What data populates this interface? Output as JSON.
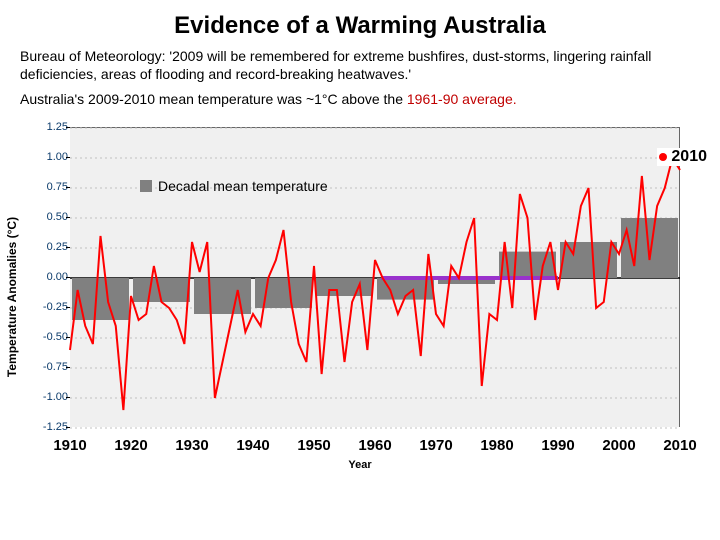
{
  "title": "Evidence of a Warming Australia",
  "para1": "Bureau of Meteorology: '2009 will be remembered for extreme bushfires, dust-storms, lingering rainfall deficiencies, areas of flooding and record-breaking heatwaves.'",
  "para2_a": "Australia's 2009-2010 mean temperature was ~1°C above the ",
  "para2_b": "1961-90 average.",
  "y_axis_label": "Temperature Anomalies (°C)",
  "x_axis_label": "Year",
  "y_ticks": [
    "1.25",
    "1.00",
    "0.75",
    "0.50",
    "0.25",
    "0.00",
    "-0.25",
    "-0.50",
    "-0.75",
    "-1.00",
    "-1.25"
  ],
  "x_ticks": [
    "1910",
    "1920",
    "1930",
    "1940",
    "1950",
    "1960",
    "1970",
    "1980",
    "1990",
    "2000",
    "2010"
  ],
  "annotation_2010": "2010",
  "legend_decadal": "Decadal mean temperature",
  "chart": {
    "type": "line+bar",
    "y_min": -1.25,
    "y_max": 1.25,
    "x_min": 1910,
    "x_max": 2010,
    "plot_bg": "#f0f0f0",
    "grid_color": "#c0c0c0",
    "line_color": "#ff0000",
    "line_width": 2,
    "bar_color": "#808080",
    "baseline_color": "#9932cc",
    "baseline_width": 4,
    "baseline_x": [
      1961,
      1990
    ],
    "decadal_bars": [
      {
        "x0": 1910,
        "x1": 1920,
        "v": -0.35
      },
      {
        "x0": 1920,
        "x1": 1930,
        "v": -0.2
      },
      {
        "x0": 1930,
        "x1": 1940,
        "v": -0.3
      },
      {
        "x0": 1940,
        "x1": 1950,
        "v": -0.25
      },
      {
        "x0": 1950,
        "x1": 1960,
        "v": -0.15
      },
      {
        "x0": 1960,
        "x1": 1970,
        "v": -0.18
      },
      {
        "x0": 1970,
        "x1": 1980,
        "v": -0.05
      },
      {
        "x0": 1980,
        "x1": 1990,
        "v": 0.22
      },
      {
        "x0": 1990,
        "x1": 2000,
        "v": 0.3
      },
      {
        "x0": 2000,
        "x1": 2010,
        "v": 0.5
      }
    ],
    "annual_series": [
      -0.6,
      -0.1,
      -0.4,
      -0.55,
      0.35,
      -0.2,
      -0.4,
      -1.1,
      -0.15,
      -0.35,
      -0.3,
      0.1,
      -0.2,
      -0.25,
      -0.35,
      -0.55,
      0.3,
      0.05,
      0.3,
      -1.0,
      -0.7,
      -0.4,
      -0.1,
      -0.45,
      -0.3,
      -0.4,
      0.0,
      0.15,
      0.4,
      -0.2,
      -0.55,
      -0.7,
      0.1,
      -0.8,
      -0.1,
      -0.1,
      -0.7,
      -0.2,
      -0.05,
      -0.6,
      0.15,
      0.0,
      -0.1,
      -0.3,
      -0.15,
      -0.1,
      -0.65,
      0.2,
      -0.3,
      -0.4,
      0.1,
      0.0,
      0.3,
      0.5,
      -0.9,
      -0.3,
      -0.35,
      0.3,
      -0.25,
      0.7,
      0.5,
      -0.35,
      0.1,
      0.3,
      -0.1,
      0.3,
      0.2,
      0.6,
      0.75,
      -0.25,
      -0.2,
      0.3,
      0.2,
      0.4,
      0.1,
      0.85,
      0.15,
      0.6,
      0.75,
      1.0,
      0.9
    ]
  }
}
